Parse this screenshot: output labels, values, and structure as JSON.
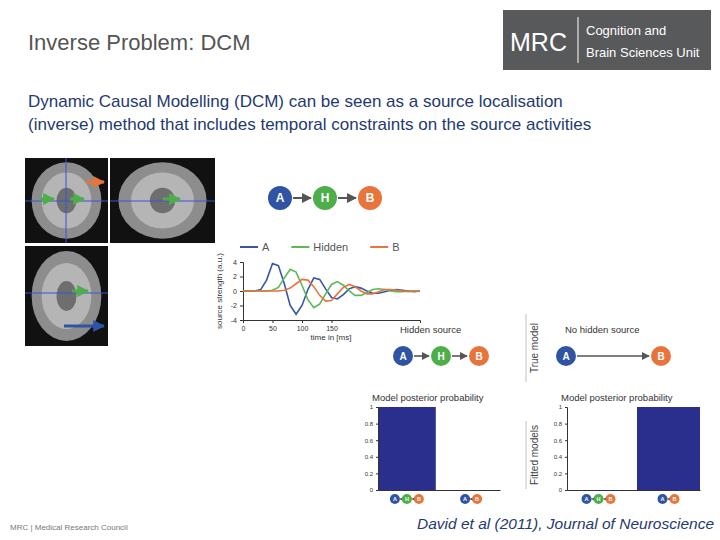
{
  "slide": {
    "title": "Inverse Problem: DCM",
    "logo": {
      "main": "MRC",
      "lines": [
        "Cognition and",
        "Brain Sciences Unit"
      ]
    },
    "body": [
      "Dynamic Causal Modelling (DCM) can be seen as a source localisation",
      "(inverse) method that includes temporal constraints on the source activities"
    ],
    "diagram_nodes": [
      "A",
      "H",
      "B"
    ],
    "node_colors": [
      "#2f54a3",
      "#4dae4a",
      "#e8743b"
    ],
    "true_models": [
      {
        "title": "Hidden source",
        "nodes": [
          "A",
          "H",
          "B"
        ]
      },
      {
        "title": "No hidden source",
        "nodes": [
          "A",
          "B"
        ]
      }
    ],
    "row_labels": [
      "True model",
      "Fitted models"
    ],
    "citation": "David et al (2011), Journal of Neuroscience",
    "footer": "MRC | Medical Research Council"
  },
  "chart_data": [
    {
      "type": "line",
      "xlabel": "time in [ms]",
      "ylabel": "source strength (a.u.)",
      "x": [
        0,
        10,
        20,
        30,
        40,
        50,
        60,
        70,
        80,
        90,
        100,
        110,
        120,
        130,
        140,
        150,
        160,
        170,
        180,
        190,
        200,
        210,
        220,
        230,
        240,
        250,
        260,
        270,
        280,
        290,
        300
      ],
      "series": [
        {
          "name": "A",
          "color": "#3a55a4",
          "values": [
            0,
            0,
            0,
            0.2,
            1.5,
            3.8,
            3.5,
            1.0,
            -2.0,
            -3.2,
            -2.0,
            0.2,
            1.8,
            1.6,
            0.3,
            -0.9,
            -1.1,
            -0.5,
            0.3,
            0.6,
            0.4,
            0,
            -0.3,
            -0.3,
            -0.1,
            0.1,
            0.2,
            0.1,
            0,
            -0.1,
            0
          ]
        },
        {
          "name": "Hidden",
          "color": "#5cb85c",
          "values": [
            0,
            0,
            0,
            0,
            0,
            0.1,
            0.5,
            1.8,
            3.0,
            2.6,
            0.8,
            -1.2,
            -2.3,
            -1.8,
            -0.4,
            0.9,
            1.3,
            0.8,
            0,
            -0.6,
            -0.6,
            -0.2,
            0.2,
            0.3,
            0.2,
            0,
            -0.1,
            -0.1,
            0,
            0,
            0
          ]
        },
        {
          "name": "B",
          "color": "#e8743b",
          "values": [
            0,
            0,
            0,
            0,
            0,
            0,
            0,
            0.1,
            0.4,
            1.0,
            1.6,
            1.5,
            0.6,
            -0.6,
            -1.4,
            -1.3,
            -0.4,
            0.5,
            0.9,
            0.6,
            0,
            -0.4,
            -0.4,
            -0.1,
            0.2,
            0.2,
            0.1,
            0,
            -0.1,
            0,
            0
          ]
        }
      ],
      "xlim": [
        0,
        300
      ],
      "ylim": [
        -4,
        4
      ],
      "xticks": [
        0,
        50,
        100,
        150
      ],
      "yticks": [
        -4,
        -2,
        0,
        2,
        4
      ],
      "legend": "top"
    },
    {
      "type": "bar",
      "title": "Model posterior probability",
      "categories": [
        null,
        null
      ],
      "values": [
        1,
        0
      ],
      "color": "#2a2f8e",
      "ylim": [
        0,
        1
      ],
      "yticks": [
        0,
        0.2,
        0.4,
        0.6,
        0.8,
        1
      ]
    },
    {
      "type": "bar",
      "title": "Model posterior probability",
      "categories": [
        null,
        null
      ],
      "values": [
        0,
        1
      ],
      "color": "#2a2f8e",
      "ylim": [
        0,
        1
      ],
      "yticks": [
        0,
        0.2,
        0.4,
        0.6,
        0.8,
        1
      ]
    }
  ]
}
